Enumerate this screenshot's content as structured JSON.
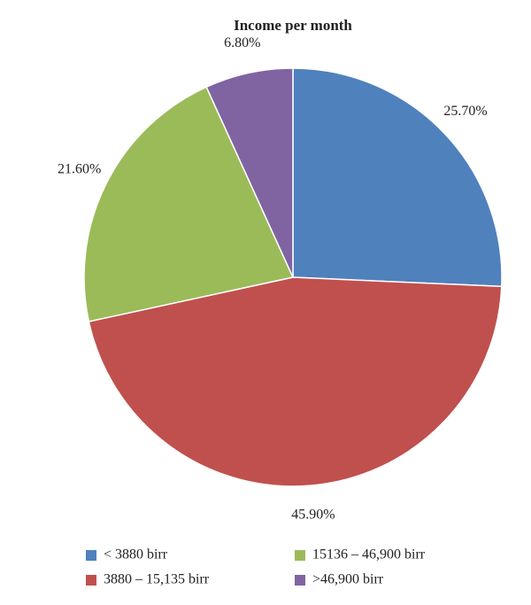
{
  "chart_data": {
    "type": "pie",
    "title": "Income per month",
    "categories": [
      "< 3880 birr",
      "3880 – 15,135 birr",
      "15136 – 46,900 birr",
      ">46,900 birr"
    ],
    "values": [
      25.7,
      45.9,
      21.6,
      6.8
    ],
    "value_labels": [
      "25.70%",
      "45.90%",
      "21.60%",
      "6.80%"
    ],
    "colors": [
      "#4f81bd",
      "#c0504d",
      "#9bbb59",
      "#8064a2"
    ],
    "legend": "bottom"
  }
}
